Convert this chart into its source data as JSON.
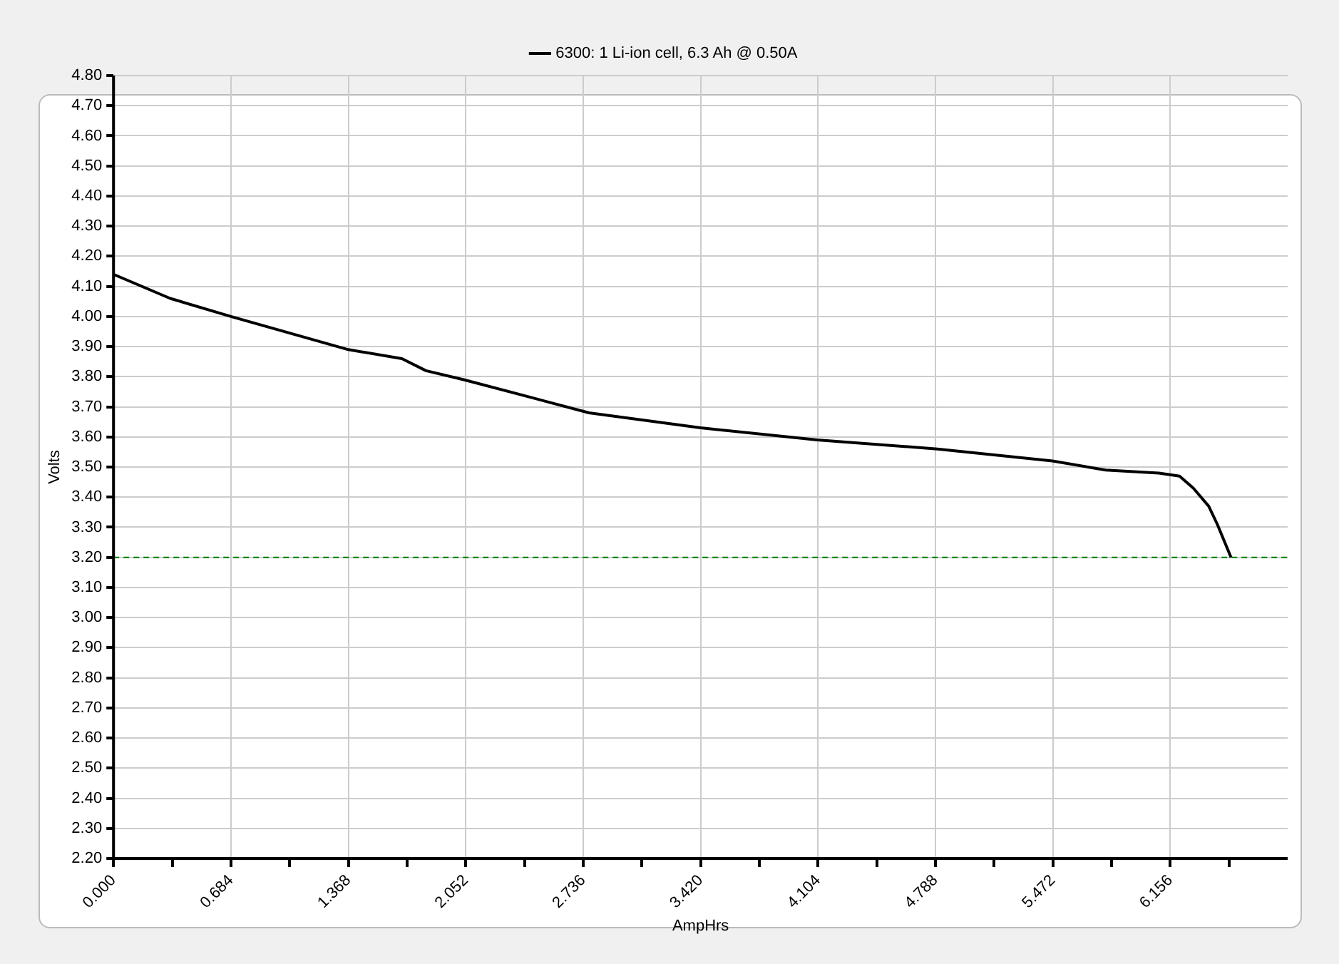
{
  "chart_data": {
    "type": "line",
    "xlabel": "AmpHrs",
    "ylabel": "Volts",
    "legend": "top",
    "grid": true,
    "marker": "none",
    "line_style": "solid",
    "xlim": [
      0,
      6.84
    ],
    "xticks": [
      {
        "value": 0,
        "label": "0.000"
      },
      {
        "value": 0.342,
        "label": null
      },
      {
        "value": 0.684,
        "label": "0.684"
      },
      {
        "value": 1.026,
        "label": null
      },
      {
        "value": 1.368,
        "label": "1.368"
      },
      {
        "value": 1.71,
        "label": null
      },
      {
        "value": 2.052,
        "label": "2.052"
      },
      {
        "value": 2.394,
        "label": null
      },
      {
        "value": 2.736,
        "label": "2.736"
      },
      {
        "value": 3.078,
        "label": null
      },
      {
        "value": 3.42,
        "label": "3.420"
      },
      {
        "value": 3.762,
        "label": null
      },
      {
        "value": 4.104,
        "label": "4.104"
      },
      {
        "value": 4.446,
        "label": null
      },
      {
        "value": 4.788,
        "label": "4.788"
      },
      {
        "value": 5.13,
        "label": null
      },
      {
        "value": 5.472,
        "label": "5.472"
      },
      {
        "value": 5.814,
        "label": null
      },
      {
        "value": 6.156,
        "label": "6.156"
      },
      {
        "value": 6.498,
        "label": null
      }
    ],
    "ylim": [
      2.2,
      4.8
    ],
    "yticks": [
      {
        "value": 2.2,
        "label": "2.20"
      },
      {
        "value": 2.3,
        "label": "2.30"
      },
      {
        "value": 2.4,
        "label": "2.40"
      },
      {
        "value": 2.5,
        "label": "2.50"
      },
      {
        "value": 2.6,
        "label": "2.60"
      },
      {
        "value": 2.7,
        "label": "2.70"
      },
      {
        "value": 2.8,
        "label": "2.80"
      },
      {
        "value": 2.9,
        "label": "2.90"
      },
      {
        "value": 3.0,
        "label": "3.00"
      },
      {
        "value": 3.1,
        "label": "3.10"
      },
      {
        "value": 3.2,
        "label": "3.20"
      },
      {
        "value": 3.3,
        "label": "3.30"
      },
      {
        "value": 3.4,
        "label": "3.40"
      },
      {
        "value": 3.5,
        "label": "3.50"
      },
      {
        "value": 3.6,
        "label": "3.60"
      },
      {
        "value": 3.7,
        "label": "3.70"
      },
      {
        "value": 3.8,
        "label": "3.80"
      },
      {
        "value": 3.9,
        "label": "3.90"
      },
      {
        "value": 4.0,
        "label": "4.00"
      },
      {
        "value": 4.1,
        "label": "4.10"
      },
      {
        "value": 4.2,
        "label": "4.20"
      },
      {
        "value": 4.3,
        "label": "4.30"
      },
      {
        "value": 4.4,
        "label": "4.40"
      },
      {
        "value": 4.5,
        "label": "4.50"
      },
      {
        "value": 4.6,
        "label": "4.60"
      },
      {
        "value": 4.7,
        "label": "4.70"
      },
      {
        "value": 4.8,
        "label": "4.80"
      }
    ],
    "ref_lines": [
      {
        "axis": "y",
        "value": 3.2,
        "color": "#007f00",
        "line_style": "dashed"
      }
    ],
    "series": [
      {
        "name": "6300: 1 Li-ion cell, 6.3 Ah @ 0.50A",
        "color": "#000000",
        "x": [
          0,
          0.33,
          0.684,
          1.368,
          1.68,
          1.82,
          2.04,
          2.44,
          2.77,
          3.42,
          4.1,
          4.8,
          5.47,
          5.78,
          6.09,
          6.21,
          6.29,
          6.38,
          6.43,
          6.51
        ],
        "values": [
          4.14,
          4.06,
          4.0,
          3.89,
          3.86,
          3.82,
          3.79,
          3.73,
          3.68,
          3.63,
          3.59,
          3.56,
          3.52,
          3.49,
          3.48,
          3.47,
          3.43,
          3.37,
          3.31,
          3.2
        ]
      }
    ]
  }
}
